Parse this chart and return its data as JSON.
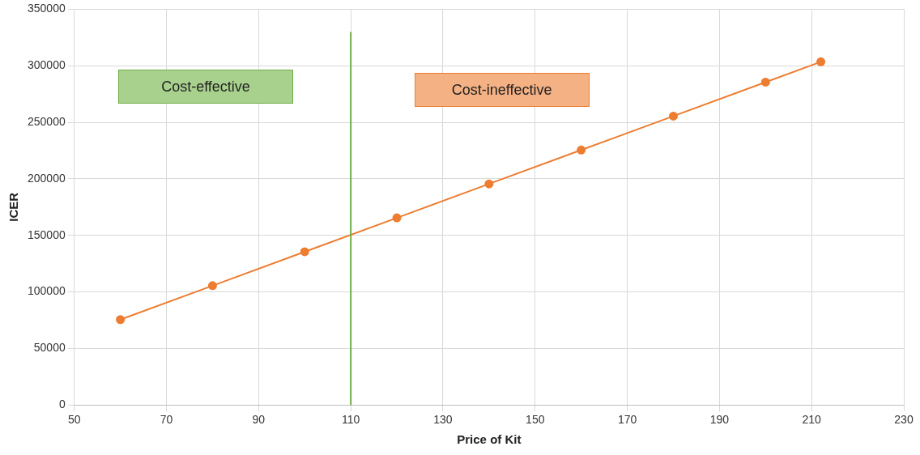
{
  "chart_data": {
    "type": "line",
    "xlabel": "Price of Kit",
    "ylabel": "ICER",
    "x": [
      60,
      80,
      100,
      120,
      140,
      160,
      180,
      200,
      212
    ],
    "series": [
      {
        "color": "#ed7d31",
        "values": [
          75500,
          105500,
          135500,
          165500,
          195500,
          225500,
          255500,
          285500,
          303500
        ]
      }
    ],
    "xlim": [
      50,
      230
    ],
    "xticks": [
      50,
      70,
      90,
      110,
      130,
      150,
      170,
      190,
      210,
      230
    ],
    "ylim": [
      0,
      350000
    ],
    "yticks": [
      0,
      50000,
      100000,
      150000,
      200000,
      250000,
      300000,
      350000
    ],
    "ref_lines": [
      {
        "axis": "x",
        "value": 110,
        "color": "#70ad47"
      }
    ],
    "annotations": [
      "Cost-effective",
      "Cost-ineffective"
    ],
    "grid": true,
    "legend": false,
    "marker": "circle",
    "line_style": "solid"
  }
}
